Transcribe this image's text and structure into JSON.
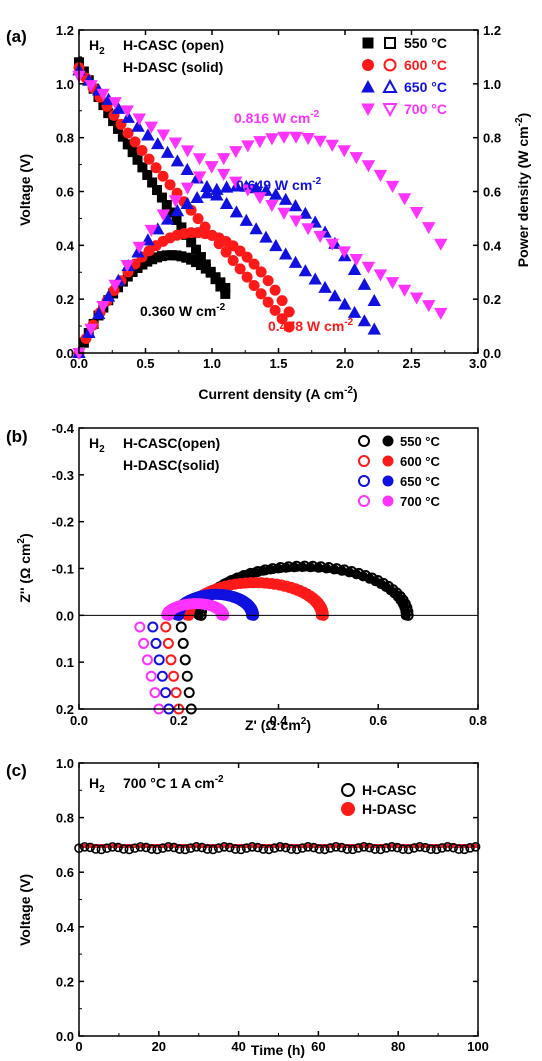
{
  "chart_data": [
    {
      "type": "line",
      "panel": "(a)",
      "xlabel": "Current density (A cm",
      "xlabel_sup": "-2",
      "xlabel_end": ")",
      "ylabel": "Voltage (V)",
      "y2label": "Power density (W cm",
      "y2label_sup": "-2",
      "y2label_end": ")",
      "xlim": [
        0,
        3.0
      ],
      "ylim": [
        0,
        1.2
      ],
      "y2lim": [
        0,
        1.2
      ],
      "xticks": [
        "0.0",
        "0.5",
        "1.0",
        "1.5",
        "2.0",
        "2.5",
        "3.0"
      ],
      "yticks": [
        "0.0",
        "0.2",
        "0.4",
        "0.6",
        "0.8",
        "1.0",
        "1.2"
      ],
      "annotation_h2": "H",
      "annotation_h2_sub": "2",
      "annotation_line1": "H-CASC (open)",
      "annotation_line2": "H-DASC (solid)",
      "legend_placement": "top-right",
      "series": [
        {
          "name": "550 °C",
          "color": "#000000",
          "marker": "square",
          "imax": 1.1,
          "ocv": 1.08,
          "ohm": 0.72
        },
        {
          "name": "600 °C",
          "color": "#ff1a1a",
          "marker": "circle",
          "imax": 1.58,
          "ocv": 1.06,
          "ohm": 0.57
        },
        {
          "name": "650 °C",
          "color": "#1010e0",
          "marker": "triangle-up",
          "imax": 2.22,
          "ocv": 1.05,
          "ohm": 0.41
        },
        {
          "name": "700 °C",
          "color": "#ff33ff",
          "marker": "triangle-down",
          "imax": 2.72,
          "ocv": 1.03,
          "ohm": 0.31
        }
      ],
      "peak_labels": [
        {
          "text": "0.360 W cm",
          "sup": "-2",
          "color": "#000000"
        },
        {
          "text": "0.478 W cm",
          "sup": "-2",
          "color": "#ff1a1a"
        },
        {
          "text": "0.649 W cm",
          "sup": "-2",
          "color": "#1010e0"
        },
        {
          "text": "0.816 W cm",
          "sup": "-2",
          "color": "#ff33ff"
        }
      ]
    },
    {
      "type": "scatter",
      "panel": "(b)",
      "xlabel": "Z' (Ω cm",
      "xlabel_sup": "2",
      "xlabel_end": ")",
      "ylabel": "Z'' (Ω cm",
      "ylabel_sup": "2",
      "ylabel_end": ")",
      "xlim": [
        0,
        0.8
      ],
      "ylim": [
        0.2,
        -0.4
      ],
      "xticks": [
        "0.0",
        "0.2",
        "0.4",
        "0.6",
        "0.8"
      ],
      "yticks": [
        "-0.4",
        "-0.3",
        "-0.2",
        "-0.1",
        "0.0",
        "0.1",
        "0.2"
      ],
      "annotation_h2": "H",
      "annotation_h2_sub": "2",
      "annotation_line1": "H-CASC(open)",
      "annotation_line2": "H-DASC(solid)",
      "legend_placement": "top-right",
      "series": [
        {
          "name": "550 °C",
          "color": "#000000",
          "r0": 0.245,
          "r1": 0.66,
          "peak": -0.105
        },
        {
          "name": "600 °C",
          "color": "#ff1a1a",
          "r0": 0.22,
          "r1": 0.49,
          "peak": -0.07
        },
        {
          "name": "650 °C",
          "color": "#1010e0",
          "r0": 0.2,
          "r1": 0.35,
          "peak": -0.045
        },
        {
          "name": "700 °C",
          "color": "#ff33ff",
          "r0": 0.18,
          "r1": 0.29,
          "peak": -0.025
        }
      ]
    },
    {
      "type": "scatter",
      "panel": "(c)",
      "xlabel": "Time (h)",
      "ylabel": "Voltage (V)",
      "xlim": [
        0,
        100
      ],
      "ylim": [
        0,
        1.0
      ],
      "xticks": [
        "0",
        "20",
        "40",
        "60",
        "80",
        "100"
      ],
      "yticks": [
        "0.0",
        "0.2",
        "0.4",
        "0.6",
        "0.8",
        "1.0"
      ],
      "annotation_h2": "H",
      "annotation_h2_sub": "2",
      "annotation_cond": "700 °C   1 A cm",
      "annotation_cond_sup": "-2",
      "legend_placement": "top-right",
      "series": [
        {
          "name": "H-CASC",
          "color": "#000000",
          "fill": "open",
          "value": 0.688
        },
        {
          "name": "H-DASC",
          "color": "#ff1a1a",
          "fill": "solid",
          "value": 0.696
        }
      ]
    }
  ]
}
